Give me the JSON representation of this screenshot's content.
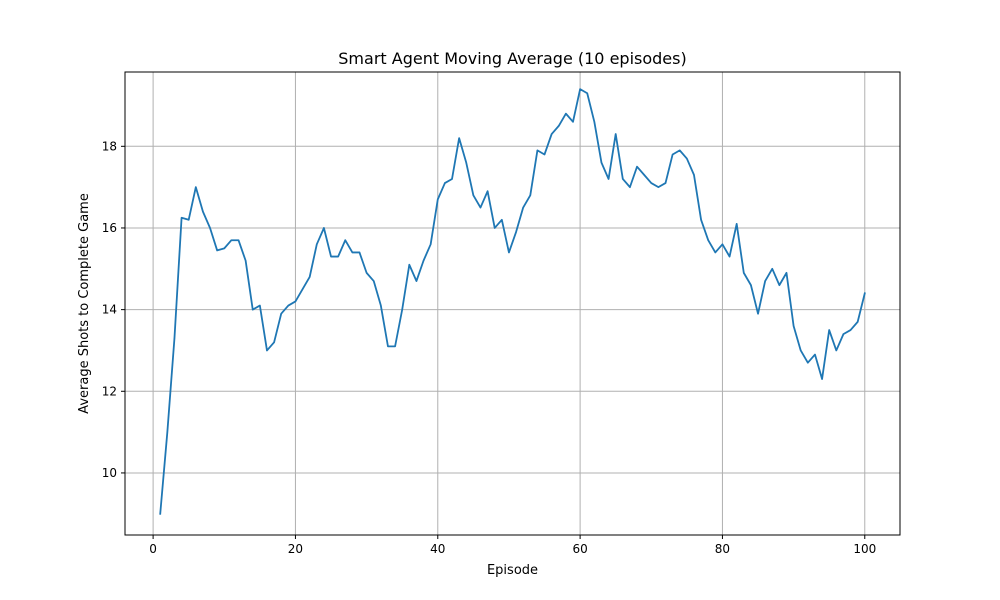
{
  "chart_data": {
    "type": "line",
    "title": "Smart Agent Moving Average (10 episodes)",
    "xlabel": "Episode",
    "ylabel": "Average Shots to Complete Game",
    "xlim": [
      -3.95,
      104.95
    ],
    "ylim": [
      8.48,
      19.82
    ],
    "xticks": [
      0,
      20,
      40,
      60,
      80,
      100
    ],
    "yticks": [
      10,
      12,
      14,
      16,
      18
    ],
    "grid": true,
    "line_color": "#1f77b4",
    "series": [
      {
        "x": [
          1,
          2,
          3,
          4,
          5,
          6,
          7,
          8,
          9,
          10,
          11,
          12,
          13,
          14,
          15,
          16,
          17,
          18,
          19,
          20,
          21,
          22,
          23,
          24,
          25,
          26,
          27,
          28,
          29,
          30,
          31,
          32,
          33,
          34,
          35,
          36,
          37,
          38,
          39,
          40,
          41,
          42,
          43,
          44,
          45,
          46,
          47,
          48,
          49,
          50,
          51,
          52,
          53,
          54,
          55,
          56,
          57,
          58,
          59,
          60,
          61,
          62,
          63,
          64,
          65,
          66,
          67,
          68,
          69,
          70,
          71,
          72,
          73,
          74,
          75,
          76,
          77,
          78,
          79,
          80,
          81,
          82,
          83,
          84,
          85,
          86,
          87,
          88,
          89,
          90,
          91,
          92,
          93,
          94,
          95,
          96,
          97,
          98,
          99,
          100
        ],
        "values": [
          9.0,
          11.0,
          13.3,
          16.25,
          16.2,
          17.0,
          16.4,
          16.0,
          15.45,
          15.5,
          15.7,
          15.7,
          15.2,
          14.0,
          14.1,
          13.0,
          13.2,
          13.9,
          14.1,
          14.2,
          14.5,
          14.8,
          15.6,
          16.0,
          15.3,
          15.3,
          15.7,
          15.4,
          15.4,
          14.9,
          14.7,
          14.1,
          13.1,
          13.1,
          14.0,
          15.1,
          14.7,
          15.2,
          15.6,
          16.7,
          17.1,
          17.2,
          18.2,
          17.6,
          16.8,
          16.5,
          16.9,
          16.0,
          16.2,
          15.4,
          15.9,
          16.5,
          16.8,
          17.9,
          17.8,
          18.3,
          18.5,
          18.8,
          18.6,
          19.4,
          19.3,
          18.6,
          17.6,
          17.2,
          18.3,
          17.2,
          17.0,
          17.5,
          17.3,
          17.1,
          17.0,
          17.1,
          17.8,
          17.9,
          17.7,
          17.3,
          16.2,
          15.7,
          15.4,
          15.6,
          15.3,
          16.1,
          14.9,
          14.6,
          13.9,
          14.7,
          15.0,
          14.6,
          14.9,
          13.6,
          13.0,
          12.7,
          12.9,
          12.3,
          13.5,
          13.0,
          13.4,
          13.5,
          13.7,
          14.4
        ]
      }
    ]
  }
}
